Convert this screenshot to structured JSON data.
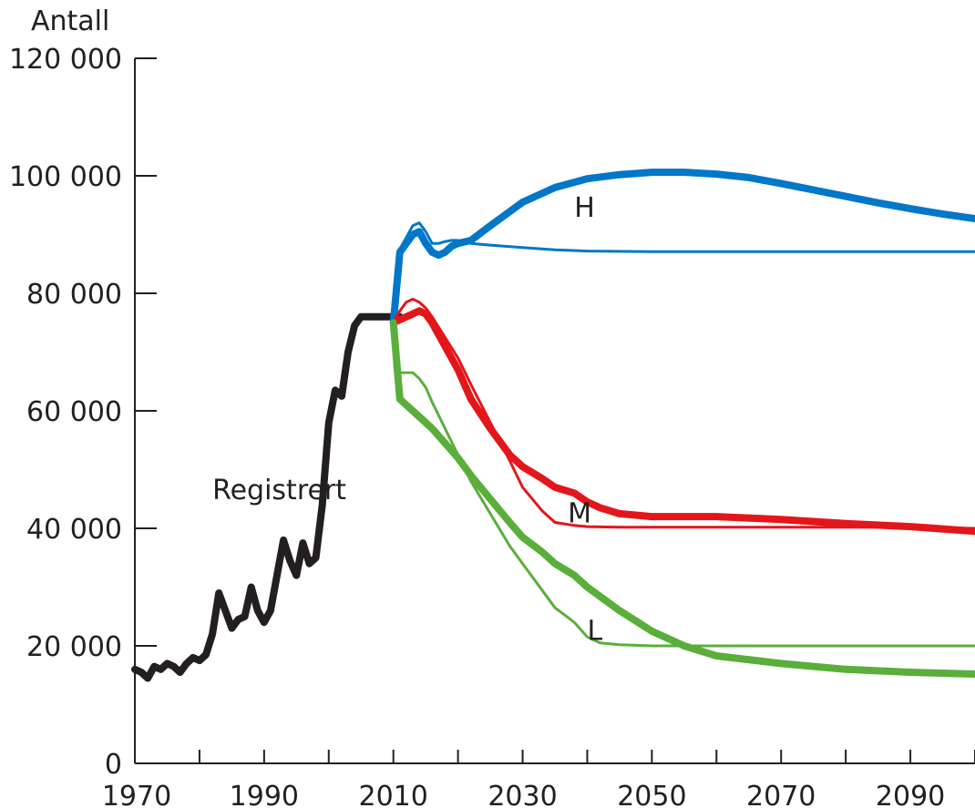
{
  "chart_data": {
    "type": "line",
    "ylabel": "Antall",
    "xlim": [
      1970,
      2100
    ],
    "ylim": [
      0,
      120000
    ],
    "x_ticks": [
      1970,
      1980,
      1990,
      2000,
      2010,
      2020,
      2030,
      2040,
      2050,
      2060,
      2070,
      2080,
      2090,
      2100
    ],
    "x_tick_labels": [
      "1970",
      "1990",
      "2010",
      "2030",
      "2050",
      "2070",
      "2090"
    ],
    "x_tick_label_values": [
      1970,
      1990,
      2010,
      2030,
      2050,
      2070,
      2090
    ],
    "y_ticks": [
      0,
      20000,
      40000,
      60000,
      80000,
      100000,
      120000
    ],
    "y_tick_labels": [
      "0",
      "20 000",
      "40 000",
      "60 000",
      "80 000",
      "100 000",
      "120 000"
    ],
    "grid": false,
    "annotations": [
      {
        "text": "Registrert",
        "x": 1982,
        "y": 45000
      },
      {
        "text": "H",
        "x": 2038,
        "y": 93000
      },
      {
        "text": "M",
        "x": 2037,
        "y": 41000
      },
      {
        "text": "L",
        "x": 2040,
        "y": 21000
      }
    ],
    "series": [
      {
        "key": "registrert",
        "color": "#231f20",
        "weight": "thick",
        "x": [
          1970,
          1971,
          1972,
          1973,
          1974,
          1975,
          1976,
          1977,
          1978,
          1979,
          1980,
          1981,
          1982,
          1983,
          1984,
          1985,
          1986,
          1987,
          1988,
          1989,
          1990,
          1991,
          1992,
          1993,
          1994,
          1995,
          1996,
          1997,
          1998,
          1999,
          2000,
          2001,
          2002,
          2003,
          2004,
          2005,
          2006,
          2007,
          2008,
          2009,
          2010,
          2011
        ],
        "y": [
          16000,
          15500,
          14500,
          16500,
          16000,
          17000,
          16500,
          15500,
          17000,
          18000,
          17500,
          18500,
          22000,
          29000,
          26000,
          23000,
          24500,
          25000,
          30000,
          26000,
          24000,
          26000,
          32000,
          38000,
          34500,
          32000,
          37500,
          34000,
          35000,
          44000,
          58000,
          63500,
          62500,
          70000,
          74500,
          76000,
          76000,
          76000,
          76000,
          76000,
          76000,
          76000
        ]
      },
      {
        "key": "H-thick",
        "color": "#0077c8",
        "weight": "thick",
        "x": [
          2010,
          2011,
          2012,
          2013,
          2014,
          2015,
          2016,
          2017,
          2018,
          2019,
          2020,
          2022,
          2025,
          2030,
          2035,
          2040,
          2045,
          2050,
          2055,
          2060,
          2065,
          2070,
          2075,
          2080,
          2085,
          2090,
          2095,
          2100
        ],
        "y": [
          75000,
          87000,
          88500,
          90000,
          90500,
          88500,
          87000,
          86500,
          87000,
          88000,
          88500,
          89000,
          91500,
          95500,
          98000,
          99500,
          100200,
          100600,
          100600,
          100300,
          99700,
          98700,
          97600,
          96500,
          95400,
          94400,
          93500,
          92700
        ]
      },
      {
        "key": "H-thin",
        "color": "#0077c8",
        "weight": "thin",
        "x": [
          2010,
          2011,
          2012,
          2013,
          2014,
          2015,
          2016,
          2017,
          2018,
          2019,
          2020,
          2022,
          2025,
          2030,
          2035,
          2040,
          2050,
          2060,
          2070,
          2080,
          2090,
          2100
        ],
        "y": [
          75000,
          87500,
          89500,
          91500,
          92000,
          90500,
          88500,
          88500,
          88800,
          89000,
          89000,
          88500,
          88200,
          87800,
          87400,
          87200,
          87100,
          87100,
          87100,
          87100,
          87100,
          87100
        ]
      },
      {
        "key": "M-thick",
        "color": "#e3161b",
        "weight": "thick",
        "x": [
          2010,
          2011,
          2012,
          2013,
          2014,
          2015,
          2016,
          2017,
          2018,
          2019,
          2020,
          2022,
          2025,
          2028,
          2030,
          2033,
          2035,
          2038,
          2040,
          2042,
          2045,
          2050,
          2055,
          2060,
          2070,
          2080,
          2090,
          2100
        ],
        "y": [
          75000,
          75500,
          76000,
          76500,
          77000,
          76500,
          75000,
          73000,
          71000,
          69000,
          67000,
          62000,
          57000,
          52500,
          50500,
          48500,
          47000,
          46000,
          44500,
          43500,
          42500,
          42000,
          42000,
          42000,
          41500,
          40800,
          40300,
          39500
        ]
      },
      {
        "key": "M-thin",
        "color": "#e3161b",
        "weight": "thin",
        "x": [
          2010,
          2011,
          2012,
          2013,
          2014,
          2015,
          2016,
          2018,
          2020,
          2022,
          2025,
          2028,
          2030,
          2033,
          2035,
          2038,
          2040,
          2045,
          2050,
          2060,
          2070,
          2080,
          2090,
          2100
        ],
        "y": [
          75000,
          77000,
          78500,
          79000,
          78500,
          77500,
          76000,
          72500,
          69000,
          64500,
          58000,
          51500,
          47000,
          43000,
          41000,
          40500,
          40300,
          40200,
          40200,
          40200,
          40200,
          40200,
          40200,
          40000
        ]
      },
      {
        "key": "L-thick",
        "color": "#5aae3a",
        "weight": "thick",
        "x": [
          2010,
          2011,
          2012,
          2013,
          2014,
          2015,
          2016,
          2018,
          2020,
          2022,
          2025,
          2028,
          2030,
          2033,
          2035,
          2038,
          2040,
          2045,
          2050,
          2055,
          2060,
          2070,
          2080,
          2090,
          2100
        ],
        "y": [
          75000,
          62000,
          61000,
          60000,
          59000,
          58000,
          57000,
          54500,
          52000,
          49000,
          45000,
          41000,
          38500,
          36000,
          34000,
          32000,
          30000,
          26000,
          22500,
          20000,
          18300,
          17000,
          16000,
          15500,
          15200
        ]
      },
      {
        "key": "L-thin",
        "color": "#5aae3a",
        "weight": "thin",
        "x": [
          2010,
          2011,
          2012,
          2013,
          2014,
          2015,
          2016,
          2018,
          2020,
          2022,
          2025,
          2028,
          2030,
          2033,
          2035,
          2038,
          2040,
          2042,
          2045,
          2050,
          2060,
          2070,
          2080,
          2090,
          2100
        ],
        "y": [
          75000,
          66500,
          66500,
          66500,
          65500,
          64000,
          61500,
          57000,
          52500,
          48000,
          42500,
          37000,
          34000,
          29500,
          26500,
          24000,
          21500,
          20500,
          20200,
          20000,
          20000,
          20000,
          20000,
          20000,
          20000
        ]
      }
    ]
  }
}
